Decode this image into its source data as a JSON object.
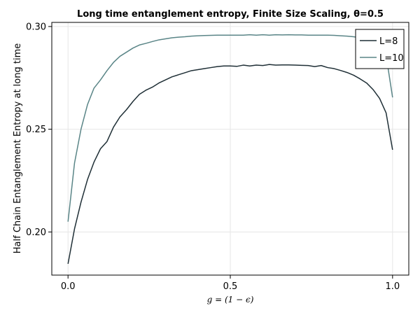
{
  "chart_data": {
    "type": "line",
    "title": "Long time entanglement entropy, Finite Size Scaling, θ=0.5",
    "xlabel": "g = (1 − ϵ)",
    "ylabel": "Half Chain Entanglement Entropy at long time",
    "xlim": [
      -0.05,
      1.05
    ],
    "ylim": [
      0.179,
      0.302
    ],
    "xticks": [
      0.0,
      0.5,
      1.0
    ],
    "xtick_labels": [
      "0.0",
      "0.5",
      "1.0"
    ],
    "yticks": [
      0.2,
      0.25,
      0.3
    ],
    "ytick_labels": [
      "0.20",
      "0.25",
      "0.30"
    ],
    "grid": true,
    "legend_position": "top-right",
    "x": [
      0.0,
      0.02,
      0.04,
      0.06,
      0.08,
      0.1,
      0.12,
      0.14,
      0.16,
      0.18,
      0.2,
      0.22,
      0.24,
      0.26,
      0.28,
      0.3,
      0.32,
      0.34,
      0.36,
      0.38,
      0.4,
      0.42,
      0.44,
      0.46,
      0.48,
      0.5,
      0.52,
      0.54,
      0.56,
      0.58,
      0.6,
      0.62,
      0.64,
      0.66,
      0.68,
      0.7,
      0.72,
      0.74,
      0.76,
      0.78,
      0.8,
      0.82,
      0.84,
      0.86,
      0.88,
      0.9,
      0.92,
      0.94,
      0.96,
      0.98,
      1.0
    ],
    "series": [
      {
        "name": "L=8",
        "color": "#1f2f36",
        "values": [
          0.1845,
          0.2015,
          0.2145,
          0.2255,
          0.234,
          0.2405,
          0.244,
          0.251,
          0.256,
          0.2595,
          0.2635,
          0.267,
          0.269,
          0.2705,
          0.2725,
          0.274,
          0.2755,
          0.2765,
          0.2775,
          0.2785,
          0.279,
          0.2795,
          0.28,
          0.2805,
          0.2808,
          0.2808,
          0.2806,
          0.2812,
          0.2808,
          0.2812,
          0.281,
          0.2815,
          0.2812,
          0.2813,
          0.2813,
          0.2812,
          0.2811,
          0.281,
          0.2805,
          0.281,
          0.28,
          0.2795,
          0.2786,
          0.2776,
          0.2763,
          0.2745,
          0.2725,
          0.2693,
          0.265,
          0.258,
          0.24
        ]
      },
      {
        "name": "L=10",
        "color": "#5a8587",
        "values": [
          0.205,
          0.2335,
          0.25,
          0.262,
          0.27,
          0.274,
          0.2785,
          0.2825,
          0.2855,
          0.2875,
          0.2895,
          0.291,
          0.2918,
          0.2927,
          0.2935,
          0.294,
          0.2945,
          0.2948,
          0.295,
          0.2953,
          0.2955,
          0.2956,
          0.2957,
          0.2958,
          0.2958,
          0.2958,
          0.2958,
          0.2958,
          0.296,
          0.2958,
          0.296,
          0.2958,
          0.296,
          0.2959,
          0.296,
          0.2959,
          0.2959,
          0.2958,
          0.2958,
          0.2958,
          0.2958,
          0.2957,
          0.2955,
          0.2953,
          0.295,
          0.2945,
          0.2935,
          0.292,
          0.29,
          0.286,
          0.2655
        ]
      }
    ]
  }
}
